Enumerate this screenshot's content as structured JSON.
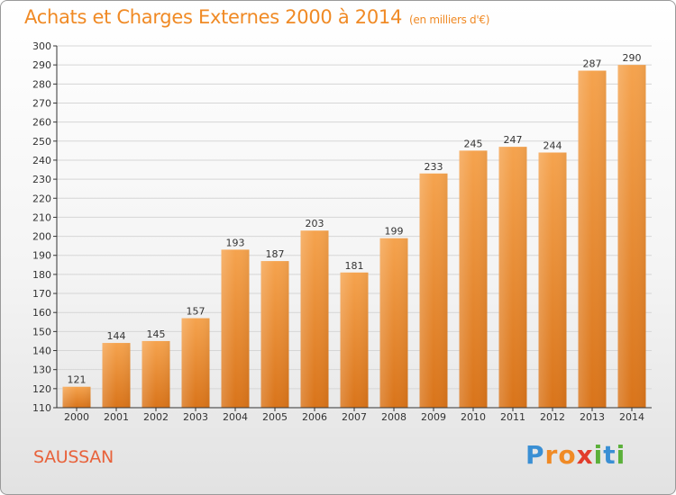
{
  "chart_data": {
    "type": "bar",
    "title": "Achats et Charges Externes 2000 à 2014",
    "unit": "(en milliers d'€)",
    "categories": [
      "2000",
      "2001",
      "2002",
      "2003",
      "2004",
      "2005",
      "2006",
      "2007",
      "2008",
      "2009",
      "2010",
      "2011",
      "2012",
      "2013",
      "2014"
    ],
    "values": [
      121,
      144,
      145,
      157,
      193,
      187,
      203,
      181,
      199,
      233,
      245,
      247,
      244,
      287,
      290
    ],
    "ylim": [
      110,
      300
    ],
    "yticks": [
      110,
      120,
      130,
      140,
      150,
      160,
      170,
      180,
      190,
      200,
      210,
      220,
      230,
      240,
      250,
      260,
      270,
      280,
      290,
      300
    ],
    "grid": true,
    "bar_color": "#f08a25",
    "xlabel": "",
    "ylabel": ""
  },
  "footer": {
    "commune": "SAUSSAN",
    "logo_letters": [
      {
        "ch": "P",
        "color": "#3a8fd4"
      },
      {
        "ch": "r",
        "color": "#f08a25"
      },
      {
        "ch": "o",
        "color": "#f08a25"
      },
      {
        "ch": "x",
        "color": "#e23c2c"
      },
      {
        "ch": "i",
        "color": "#5bb03a"
      },
      {
        "ch": "t",
        "color": "#3a8fd4"
      },
      {
        "ch": "i",
        "color": "#5bb03a"
      }
    ]
  }
}
